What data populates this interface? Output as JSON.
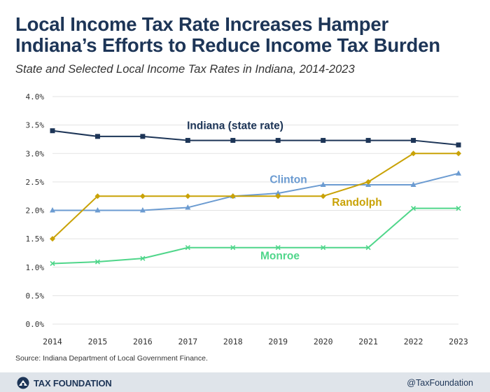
{
  "header": {
    "title_line1": "Local Income Tax Rate Increases Hamper",
    "title_line2": "Indiana’s Efforts to Reduce Income Tax Burden",
    "subtitle": "State and Selected Local Income Tax Rates in Indiana, 2014-2023"
  },
  "chart_data": {
    "type": "line",
    "title": "Local Income Tax Rate Increases Hamper Indiana’s Efforts to Reduce Income Tax Burden",
    "subtitle": "State and Selected Local Income Tax Rates in Indiana, 2014-2023",
    "xlabel": "",
    "ylabel": "",
    "x": [
      "2014",
      "2015",
      "2016",
      "2017",
      "2018",
      "2019",
      "2020",
      "2021",
      "2022",
      "2023"
    ],
    "ylim": [
      0,
      4.0
    ],
    "yticks": [
      0,
      0.5,
      1.0,
      1.5,
      2.0,
      2.5,
      3.0,
      3.5,
      4.0
    ],
    "ytick_labels": [
      "0.0%",
      "0.5%",
      "1.0%",
      "1.5%",
      "2.0%",
      "2.5%",
      "3.0%",
      "3.5%",
      "4.0%"
    ],
    "grid": true,
    "series": [
      {
        "name": "Indiana (state rate)",
        "color": "#1d3557",
        "marker": "square",
        "values": [
          3.4,
          3.3,
          3.3,
          3.23,
          3.23,
          3.23,
          3.23,
          3.23,
          3.23,
          3.15
        ]
      },
      {
        "name": "Clinton",
        "color": "#6b9bd1",
        "marker": "triangle",
        "values": [
          2.0,
          2.0,
          2.0,
          2.05,
          2.25,
          2.3,
          2.45,
          2.45,
          2.45,
          2.65
        ]
      },
      {
        "name": "Randolph",
        "color": "#c9a206",
        "marker": "diamond",
        "values": [
          1.5,
          2.25,
          2.25,
          2.25,
          2.25,
          2.25,
          2.25,
          2.5,
          3.0,
          3.0
        ]
      },
      {
        "name": "Monroe",
        "color": "#4fd68a",
        "marker": "x",
        "values": [
          1.065,
          1.095,
          1.155,
          1.345,
          1.345,
          1.345,
          1.345,
          1.345,
          2.035,
          2.035
        ]
      }
    ]
  },
  "source": "Source: Indiana Department of Local Government Finance.",
  "footer": {
    "brand": "TAX FOUNDATION",
    "handle": "@TaxFoundation"
  }
}
